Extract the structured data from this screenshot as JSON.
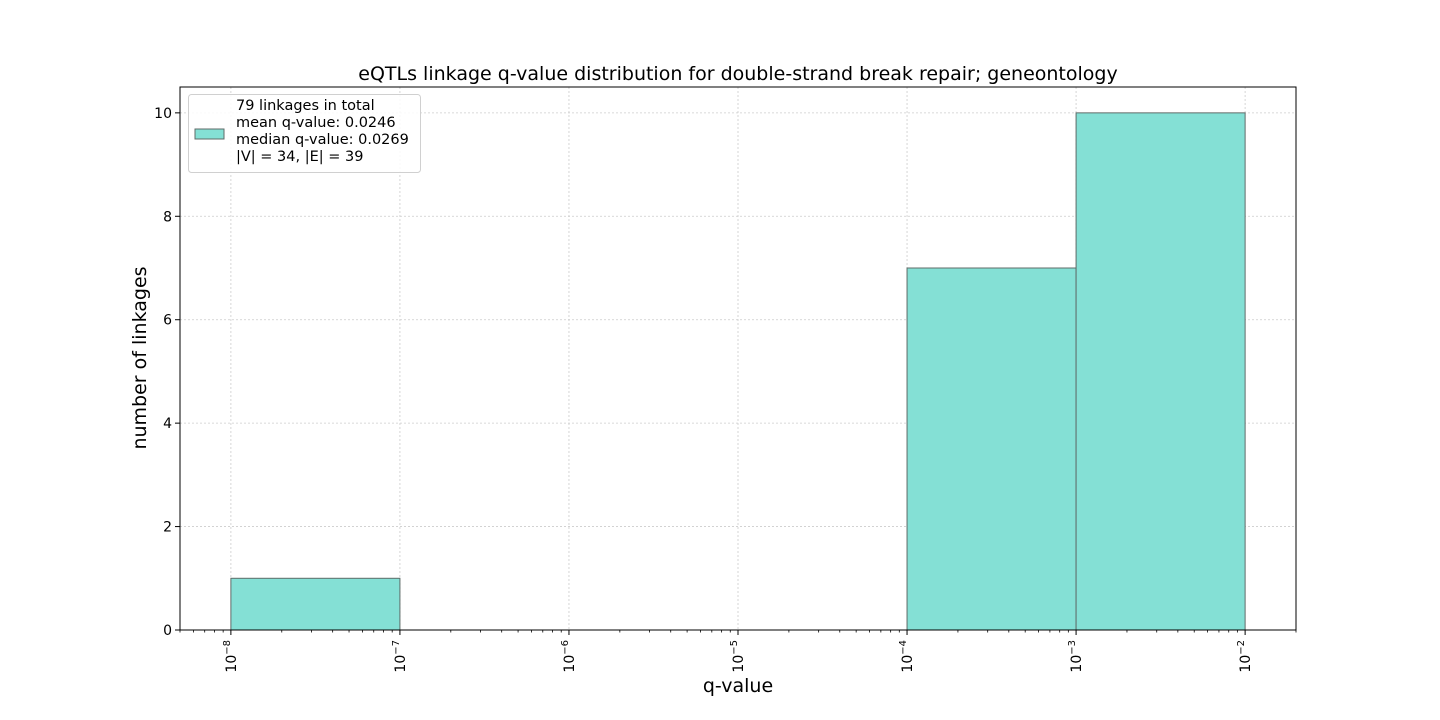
{
  "chart_data": {
    "type": "bar",
    "title": "eQTLs linkage q-value distribution for double-strand break repair; geneontology",
    "xlabel": "q-value",
    "ylabel": "number of linkages",
    "x_scale": "log",
    "xlim": [
      5e-09,
      0.02
    ],
    "ylim": [
      0,
      10.5
    ],
    "y_ticks": [
      0,
      2,
      4,
      6,
      8,
      10
    ],
    "x_ticks": [
      {
        "value": 1e-08,
        "base": "10",
        "exp": "−8"
      },
      {
        "value": 1e-07,
        "base": "10",
        "exp": "−7"
      },
      {
        "value": 1e-06,
        "base": "10",
        "exp": "−6"
      },
      {
        "value": 1e-05,
        "base": "10",
        "exp": "−5"
      },
      {
        "value": 0.0001,
        "base": "10",
        "exp": "−4"
      },
      {
        "value": 0.001,
        "base": "10",
        "exp": "−3"
      },
      {
        "value": 0.01,
        "base": "10",
        "exp": "−2"
      }
    ],
    "bins": [
      {
        "start": 1e-08,
        "end": 1e-07,
        "count": 1
      },
      {
        "start": 1e-07,
        "end": 1e-06,
        "count": 0
      },
      {
        "start": 1e-06,
        "end": 1e-05,
        "count": 0
      },
      {
        "start": 1e-05,
        "end": 0.0001,
        "count": 0
      },
      {
        "start": 0.0001,
        "end": 0.001,
        "count": 7
      },
      {
        "start": 0.001,
        "end": 0.01,
        "count": 10
      }
    ],
    "grid": true,
    "legend_position": "top-left",
    "legend_lines": [
      "79 linkages in total",
      "mean q-value: 0.0246",
      "median q-value: 0.0269",
      "|V| = 34, |E| = 39"
    ],
    "colors": {
      "bar_fill": "#84e0d5",
      "bar_edge": "#5f6b68",
      "grid": "#cccccc"
    }
  }
}
